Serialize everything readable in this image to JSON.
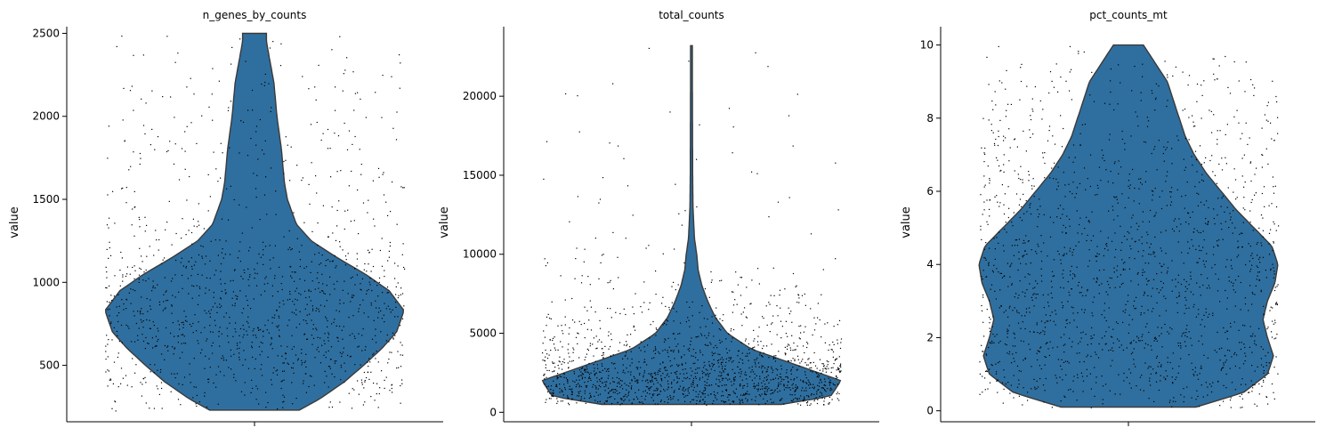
{
  "chart_data": [
    {
      "type": "violin",
      "title": "n_genes_by_counts",
      "ylabel": "value",
      "xlabel": "",
      "ylim": [
        160,
        2540
      ],
      "yticks": [
        500,
        1000,
        1500,
        2000,
        2500
      ],
      "data_range": [
        230,
        2500
      ],
      "color": "#2f6f9f",
      "jitter": true,
      "density_profile": [
        [
          230,
          0.3
        ],
        [
          300,
          0.44
        ],
        [
          400,
          0.6
        ],
        [
          500,
          0.73
        ],
        [
          600,
          0.85
        ],
        [
          700,
          0.95
        ],
        [
          830,
          1.0
        ],
        [
          950,
          0.9
        ],
        [
          1050,
          0.74
        ],
        [
          1150,
          0.55
        ],
        [
          1250,
          0.38
        ],
        [
          1350,
          0.28
        ],
        [
          1500,
          0.22
        ],
        [
          1600,
          0.2
        ],
        [
          1800,
          0.18
        ],
        [
          2000,
          0.15
        ],
        [
          2200,
          0.13
        ],
        [
          2350,
          0.1
        ],
        [
          2450,
          0.08
        ],
        [
          2500,
          0.08
        ]
      ]
    },
    {
      "type": "violin",
      "title": "total_counts",
      "ylabel": "value",
      "xlabel": "",
      "ylim": [
        -600,
        24400
      ],
      "yticks": [
        0,
        5000,
        10000,
        15000,
        20000
      ],
      "data_range": [
        500,
        23200
      ],
      "color": "#2f6f9f",
      "jitter": true,
      "density_profile": [
        [
          500,
          0.6
        ],
        [
          1000,
          0.93
        ],
        [
          2000,
          1.0
        ],
        [
          3000,
          0.7
        ],
        [
          4000,
          0.4
        ],
        [
          5000,
          0.24
        ],
        [
          6000,
          0.16
        ],
        [
          7000,
          0.11
        ],
        [
          8000,
          0.07
        ],
        [
          9000,
          0.045
        ],
        [
          10000,
          0.035
        ],
        [
          11000,
          0.02
        ],
        [
          13000,
          0.01
        ],
        [
          15000,
          0.008
        ],
        [
          18000,
          0.007
        ],
        [
          21000,
          0.006
        ],
        [
          23200,
          0.006
        ]
      ]
    },
    {
      "type": "violin",
      "title": "pct_counts_mt",
      "ylabel": "value",
      "xlabel": "",
      "ylim": [
        -0.3,
        10.5
      ],
      "yticks": [
        0,
        2,
        4,
        6,
        8,
        10
      ],
      "data_range": [
        0.1,
        10
      ],
      "color": "#2f6f9f",
      "jitter": true,
      "density_profile": [
        [
          0.1,
          0.45
        ],
        [
          0.5,
          0.77
        ],
        [
          1.0,
          0.93
        ],
        [
          1.5,
          0.97
        ],
        [
          2.0,
          0.93
        ],
        [
          2.5,
          0.9
        ],
        [
          3.0,
          0.93
        ],
        [
          3.5,
          0.98
        ],
        [
          4.0,
          1.0
        ],
        [
          4.5,
          0.96
        ],
        [
          5.0,
          0.84
        ],
        [
          5.5,
          0.72
        ],
        [
          6.0,
          0.62
        ],
        [
          6.5,
          0.52
        ],
        [
          7.0,
          0.44
        ],
        [
          7.5,
          0.38
        ],
        [
          8.0,
          0.34
        ],
        [
          8.5,
          0.3
        ],
        [
          9.0,
          0.26
        ],
        [
          9.5,
          0.18
        ],
        [
          10.0,
          0.1
        ]
      ]
    }
  ]
}
